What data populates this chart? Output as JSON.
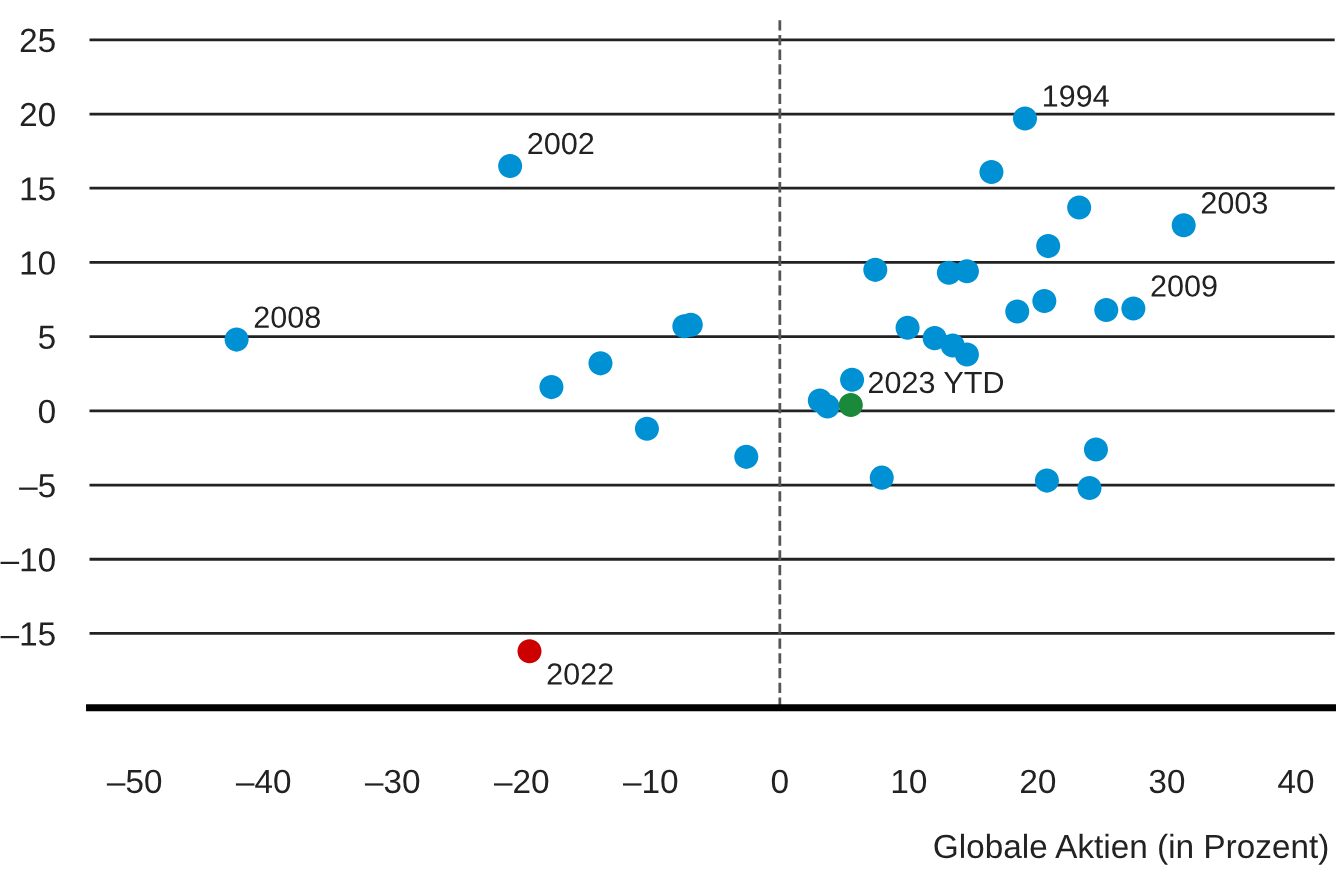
{
  "chart_data": {
    "type": "scatter",
    "xlabel": "Globale Aktien (in Prozent)",
    "series": [
      {
        "color": "#0091d5",
        "x": [
          -42.1,
          -20.9,
          -17.7,
          -13.9,
          -10.3,
          -7.4,
          -6.9,
          -2.6,
          7.4,
          9.9,
          12.0,
          13.4,
          14.5,
          13.1,
          14.5,
          16.4,
          19.0,
          23.2,
          31.3,
          20.8,
          18.4,
          20.5,
          25.3,
          27.4,
          5.6,
          3.1,
          3.7,
          7.9,
          20.7,
          24.0,
          24.5
        ],
        "values": [
          4.8,
          16.5,
          1.6,
          3.2,
          -1.2,
          5.7,
          5.8,
          -3.1,
          9.5,
          5.6,
          4.9,
          4.4,
          3.8,
          9.3,
          9.4,
          16.1,
          19.7,
          13.7,
          12.5,
          11.1,
          6.7,
          7.4,
          6.8,
          6.9,
          2.1,
          0.7,
          0.3,
          -4.5,
          -4.7,
          -5.2,
          -2.6
        ]
      },
      {
        "color": "#cc0000",
        "x": [
          -19.4
        ],
        "values": [
          -16.2
        ]
      },
      {
        "color": "#1a8a3a",
        "x": [
          5.5
        ],
        "values": [
          0.4
        ]
      }
    ],
    "annotations": [
      {
        "text": "2008",
        "x": -42.1,
        "y": 4.8
      },
      {
        "text": "2002",
        "x": -20.9,
        "y": 16.5
      },
      {
        "text": "1994",
        "x": 19.0,
        "y": 19.7
      },
      {
        "text": "2003",
        "x": 31.3,
        "y": 12.5
      },
      {
        "text": "2009",
        "x": 27.4,
        "y": 6.9
      },
      {
        "text": "2023 YTD",
        "x": 5.5,
        "y": 0.4
      },
      {
        "text": "2022",
        "x": -19.4,
        "y": -16.2
      }
    ],
    "ref_lines": [
      {
        "axis": "x",
        "value": 0,
        "color": "#555555",
        "line_style": "dashed"
      }
    ],
    "xlim": [
      -53.5,
      43
    ],
    "ylim": [
      -20,
      26.5
    ],
    "xticks": [
      {
        "value": -50,
        "label": "–50"
      },
      {
        "value": -40,
        "label": "–40"
      },
      {
        "value": -30,
        "label": "–30"
      },
      {
        "value": -20,
        "label": "–20"
      },
      {
        "value": -10,
        "label": "–10"
      },
      0,
      10,
      20,
      30,
      40
    ],
    "yticks": [
      {
        "value": -15,
        "label": "–15"
      },
      {
        "value": -10,
        "label": "–10"
      },
      {
        "value": -5,
        "label": "–5"
      },
      0,
      5,
      10,
      15,
      20,
      25
    ],
    "grid": "y",
    "marker": "circle"
  }
}
